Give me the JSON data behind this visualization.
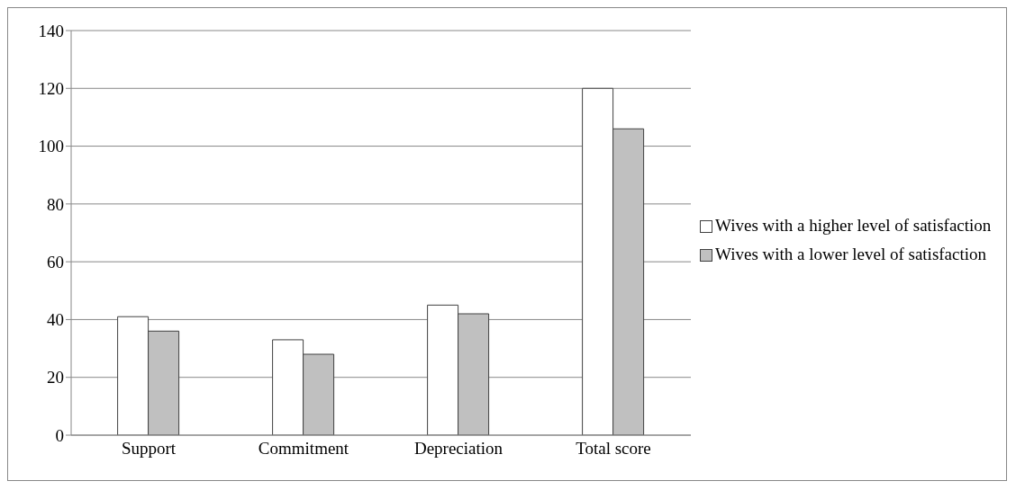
{
  "chart_data": {
    "type": "bar",
    "categories": [
      "Support",
      "Commitment",
      "Depreciation",
      "Total score"
    ],
    "series": [
      {
        "name": "Wives with a higher level of satisfaction",
        "color": "#ffffff",
        "values": [
          41,
          33,
          45,
          120
        ]
      },
      {
        "name": "Wives with a lower level of satisfaction",
        "color": "#c0c0c0",
        "values": [
          36,
          28,
          42,
          106
        ]
      }
    ],
    "ylim": [
      0,
      140
    ],
    "yticks": [
      0,
      20,
      40,
      60,
      80,
      100,
      120,
      140
    ],
    "grid": "y",
    "legend": "right"
  }
}
